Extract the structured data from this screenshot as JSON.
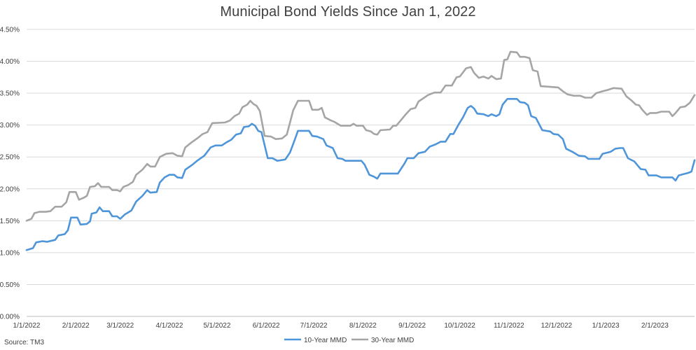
{
  "chart_data": {
    "type": "line",
    "title": "Municipal Bond Yields Since Jan 1, 2022",
    "xlabel": "",
    "ylabel": "",
    "source": "Source: TM3",
    "ylim": [
      0,
      4.5
    ],
    "y_ticks": [
      "0.00%",
      "0.50%",
      "1.00%",
      "1.50%",
      "2.00%",
      "2.50%",
      "3.00%",
      "3.50%",
      "4.00%",
      "4.50%"
    ],
    "x_ticks": [
      "1/1/2022",
      "2/1/2022",
      "3/1/2022",
      "4/1/2022",
      "5/1/2022",
      "6/1/2022",
      "7/1/2022",
      "8/1/2022",
      "9/1/2022",
      "10/1/2022",
      "11/1/2022",
      "12/1/2022",
      "1/1/2023",
      "2/1/2023"
    ],
    "xlim": [
      "2022-01-01",
      "2023-02-26"
    ],
    "grid": true,
    "legend_position": "bottom-center",
    "series": [
      {
        "name": "10-Year MMD",
        "color": "#4E95D9",
        "points": [
          [
            "2022-01-01",
            1.04
          ],
          [
            "2022-01-05",
            1.07
          ],
          [
            "2022-01-07",
            1.16
          ],
          [
            "2022-01-11",
            1.18
          ],
          [
            "2022-01-14",
            1.17
          ],
          [
            "2022-01-19",
            1.2
          ],
          [
            "2022-01-21",
            1.27
          ],
          [
            "2022-01-25",
            1.29
          ],
          [
            "2022-01-27",
            1.35
          ],
          [
            "2022-01-28",
            1.45
          ],
          [
            "2022-01-29",
            1.55
          ],
          [
            "2022-02-02",
            1.55
          ],
          [
            "2022-02-04",
            1.44
          ],
          [
            "2022-02-08",
            1.45
          ],
          [
            "2022-02-10",
            1.49
          ],
          [
            "2022-02-11",
            1.61
          ],
          [
            "2022-02-14",
            1.63
          ],
          [
            "2022-02-16",
            1.71
          ],
          [
            "2022-02-18",
            1.65
          ],
          [
            "2022-02-22",
            1.65
          ],
          [
            "2022-02-24",
            1.57
          ],
          [
            "2022-02-27",
            1.57
          ],
          [
            "2022-03-01",
            1.53
          ],
          [
            "2022-03-04",
            1.6
          ],
          [
            "2022-03-08",
            1.66
          ],
          [
            "2022-03-11",
            1.8
          ],
          [
            "2022-03-15",
            1.89
          ],
          [
            "2022-03-18",
            1.98
          ],
          [
            "2022-03-20",
            1.94
          ],
          [
            "2022-03-24",
            1.95
          ],
          [
            "2022-03-26",
            2.1
          ],
          [
            "2022-03-29",
            2.18
          ],
          [
            "2022-04-01",
            2.22
          ],
          [
            "2022-04-04",
            2.22
          ],
          [
            "2022-04-06",
            2.18
          ],
          [
            "2022-04-09",
            2.17
          ],
          [
            "2022-04-11",
            2.3
          ],
          [
            "2022-04-15",
            2.37
          ],
          [
            "2022-04-19",
            2.45
          ],
          [
            "2022-04-23",
            2.52
          ],
          [
            "2022-04-27",
            2.65
          ],
          [
            "2022-04-30",
            2.68
          ],
          [
            "2022-05-04",
            2.68
          ],
          [
            "2022-05-07",
            2.73
          ],
          [
            "2022-05-10",
            2.77
          ],
          [
            "2022-05-13",
            2.85
          ],
          [
            "2022-05-16",
            2.87
          ],
          [
            "2022-05-18",
            2.97
          ],
          [
            "2022-05-21",
            2.98
          ],
          [
            "2022-05-23",
            3.02
          ],
          [
            "2022-05-25",
            2.99
          ],
          [
            "2022-05-27",
            2.91
          ],
          [
            "2022-05-29",
            2.89
          ],
          [
            "2022-06-02",
            2.48
          ],
          [
            "2022-06-05",
            2.48
          ],
          [
            "2022-06-08",
            2.44
          ],
          [
            "2022-06-13",
            2.46
          ],
          [
            "2022-06-16",
            2.57
          ],
          [
            "2022-06-19",
            2.77
          ],
          [
            "2022-06-21",
            2.91
          ],
          [
            "2022-06-28",
            2.91
          ],
          [
            "2022-06-30",
            2.83
          ],
          [
            "2022-07-03",
            2.82
          ],
          [
            "2022-07-07",
            2.78
          ],
          [
            "2022-07-09",
            2.68
          ],
          [
            "2022-07-13",
            2.64
          ],
          [
            "2022-07-16",
            2.48
          ],
          [
            "2022-07-19",
            2.47
          ],
          [
            "2022-07-21",
            2.44
          ],
          [
            "2022-07-31",
            2.44
          ],
          [
            "2022-08-02",
            2.38
          ],
          [
            "2022-08-05",
            2.22
          ],
          [
            "2022-08-08",
            2.19
          ],
          [
            "2022-08-10",
            2.16
          ],
          [
            "2022-08-12",
            2.24
          ],
          [
            "2022-08-23",
            2.24
          ],
          [
            "2022-08-27",
            2.39
          ],
          [
            "2022-08-29",
            2.48
          ],
          [
            "2022-09-02",
            2.48
          ],
          [
            "2022-09-05",
            2.56
          ],
          [
            "2022-09-09",
            2.58
          ],
          [
            "2022-09-12",
            2.66
          ],
          [
            "2022-09-16",
            2.7
          ],
          [
            "2022-09-19",
            2.74
          ],
          [
            "2022-09-22",
            2.74
          ],
          [
            "2022-09-25",
            2.86
          ],
          [
            "2022-09-27",
            2.86
          ],
          [
            "2022-09-30",
            3.0
          ],
          [
            "2022-10-03",
            3.12
          ],
          [
            "2022-10-06",
            3.27
          ],
          [
            "2022-10-08",
            3.3
          ],
          [
            "2022-10-10",
            3.26
          ],
          [
            "2022-10-12",
            3.18
          ],
          [
            "2022-10-16",
            3.17
          ],
          [
            "2022-10-19",
            3.14
          ],
          [
            "2022-10-21",
            3.17
          ],
          [
            "2022-10-24",
            3.14
          ],
          [
            "2022-10-26",
            3.17
          ],
          [
            "2022-10-28",
            3.32
          ],
          [
            "2022-10-31",
            3.41
          ],
          [
            "2022-11-06",
            3.41
          ],
          [
            "2022-11-08",
            3.36
          ],
          [
            "2022-11-11",
            3.35
          ],
          [
            "2022-11-13",
            3.31
          ],
          [
            "2022-11-15",
            3.14
          ],
          [
            "2022-11-18",
            3.11
          ],
          [
            "2022-11-22",
            2.92
          ],
          [
            "2022-11-27",
            2.9
          ],
          [
            "2022-11-29",
            2.86
          ],
          [
            "2022-12-02",
            2.85
          ],
          [
            "2022-12-05",
            2.78
          ],
          [
            "2022-12-07",
            2.63
          ],
          [
            "2022-12-11",
            2.58
          ],
          [
            "2022-12-15",
            2.52
          ],
          [
            "2022-12-19",
            2.51
          ],
          [
            "2022-12-21",
            2.47
          ],
          [
            "2022-12-28",
            2.47
          ],
          [
            "2022-12-30",
            2.55
          ],
          [
            "2023-01-04",
            2.58
          ],
          [
            "2023-01-07",
            2.63
          ],
          [
            "2023-01-10",
            2.64
          ],
          [
            "2023-01-12",
            2.64
          ],
          [
            "2023-01-15",
            2.48
          ],
          [
            "2023-01-19",
            2.43
          ],
          [
            "2023-01-21",
            2.37
          ],
          [
            "2023-01-23",
            2.31
          ],
          [
            "2023-01-26",
            2.3
          ],
          [
            "2023-01-28",
            2.21
          ],
          [
            "2023-02-02",
            2.21
          ],
          [
            "2023-02-05",
            2.18
          ],
          [
            "2023-02-09",
            2.18
          ],
          [
            "2023-02-12",
            2.18
          ],
          [
            "2023-02-14",
            2.13
          ],
          [
            "2023-02-16",
            2.21
          ],
          [
            "2023-02-19",
            2.23
          ],
          [
            "2023-02-22",
            2.25
          ],
          [
            "2023-02-24",
            2.27
          ],
          [
            "2023-02-26",
            2.45
          ]
        ]
      },
      {
        "name": "30-Year MMD",
        "color": "#A5A5A5",
        "points": [
          [
            "2022-01-01",
            1.5
          ],
          [
            "2022-01-04",
            1.53
          ],
          [
            "2022-01-06",
            1.62
          ],
          [
            "2022-01-09",
            1.64
          ],
          [
            "2022-01-13",
            1.64
          ],
          [
            "2022-01-16",
            1.65
          ],
          [
            "2022-01-19",
            1.72
          ],
          [
            "2022-01-23",
            1.72
          ],
          [
            "2022-01-26",
            1.79
          ],
          [
            "2022-01-28",
            1.95
          ],
          [
            "2022-02-01",
            1.95
          ],
          [
            "2022-02-03",
            1.83
          ],
          [
            "2022-02-06",
            1.86
          ],
          [
            "2022-02-08",
            1.89
          ],
          [
            "2022-02-10",
            2.03
          ],
          [
            "2022-02-13",
            2.04
          ],
          [
            "2022-02-15",
            2.09
          ],
          [
            "2022-02-17",
            2.03
          ],
          [
            "2022-02-22",
            2.03
          ],
          [
            "2022-02-24",
            1.98
          ],
          [
            "2022-02-27",
            1.98
          ],
          [
            "2022-03-01",
            1.96
          ],
          [
            "2022-03-03",
            2.03
          ],
          [
            "2022-03-06",
            2.06
          ],
          [
            "2022-03-09",
            2.11
          ],
          [
            "2022-03-11",
            2.22
          ],
          [
            "2022-03-15",
            2.3
          ],
          [
            "2022-03-18",
            2.39
          ],
          [
            "2022-03-20",
            2.35
          ],
          [
            "2022-03-23",
            2.35
          ],
          [
            "2022-03-26",
            2.5
          ],
          [
            "2022-03-30",
            2.55
          ],
          [
            "2022-04-03",
            2.56
          ],
          [
            "2022-04-06",
            2.52
          ],
          [
            "2022-04-09",
            2.51
          ],
          [
            "2022-04-11",
            2.65
          ],
          [
            "2022-04-15",
            2.73
          ],
          [
            "2022-04-19",
            2.8
          ],
          [
            "2022-04-22",
            2.86
          ],
          [
            "2022-04-25",
            2.89
          ],
          [
            "2022-04-28",
            3.03
          ],
          [
            "2022-05-06",
            3.04
          ],
          [
            "2022-05-09",
            3.07
          ],
          [
            "2022-05-12",
            3.14
          ],
          [
            "2022-05-15",
            3.18
          ],
          [
            "2022-05-17",
            3.28
          ],
          [
            "2022-05-20",
            3.32
          ],
          [
            "2022-05-22",
            3.38
          ],
          [
            "2022-05-24",
            3.33
          ],
          [
            "2022-05-26",
            3.3
          ],
          [
            "2022-05-28",
            3.22
          ],
          [
            "2022-05-31",
            2.83
          ],
          [
            "2022-06-04",
            2.82
          ],
          [
            "2022-06-07",
            2.78
          ],
          [
            "2022-06-11",
            2.79
          ],
          [
            "2022-06-14",
            2.85
          ],
          [
            "2022-06-16",
            3.04
          ],
          [
            "2022-06-18",
            3.23
          ],
          [
            "2022-06-21",
            3.38
          ],
          [
            "2022-06-28",
            3.38
          ],
          [
            "2022-06-30",
            3.24
          ],
          [
            "2022-07-04",
            3.24
          ],
          [
            "2022-07-06",
            3.27
          ],
          [
            "2022-07-08",
            3.12
          ],
          [
            "2022-07-12",
            3.07
          ],
          [
            "2022-07-14",
            3.05
          ],
          [
            "2022-07-18",
            2.99
          ],
          [
            "2022-07-24",
            2.99
          ],
          [
            "2022-07-26",
            3.02
          ],
          [
            "2022-07-28",
            2.99
          ],
          [
            "2022-08-01",
            2.99
          ],
          [
            "2022-08-03",
            2.92
          ],
          [
            "2022-08-06",
            2.9
          ],
          [
            "2022-08-08",
            2.86
          ],
          [
            "2022-08-10",
            2.85
          ],
          [
            "2022-08-12",
            2.92
          ],
          [
            "2022-08-18",
            2.93
          ],
          [
            "2022-08-20",
            2.99
          ],
          [
            "2022-08-22",
            2.99
          ],
          [
            "2022-08-25",
            3.08
          ],
          [
            "2022-08-28",
            3.17
          ],
          [
            "2022-08-31",
            3.25
          ],
          [
            "2022-09-03",
            3.27
          ],
          [
            "2022-09-05",
            3.37
          ],
          [
            "2022-09-08",
            3.42
          ],
          [
            "2022-09-11",
            3.47
          ],
          [
            "2022-09-15",
            3.51
          ],
          [
            "2022-09-19",
            3.51
          ],
          [
            "2022-09-22",
            3.62
          ],
          [
            "2022-09-26",
            3.62
          ],
          [
            "2022-09-29",
            3.75
          ],
          [
            "2022-10-01",
            3.76
          ],
          [
            "2022-10-05",
            3.89
          ],
          [
            "2022-10-08",
            3.91
          ],
          [
            "2022-10-10",
            3.82
          ],
          [
            "2022-10-13",
            3.74
          ],
          [
            "2022-10-16",
            3.76
          ],
          [
            "2022-10-19",
            3.73
          ],
          [
            "2022-10-21",
            3.77
          ],
          [
            "2022-10-24",
            3.72
          ],
          [
            "2022-10-27",
            3.73
          ],
          [
            "2022-10-29",
            4.02
          ],
          [
            "2022-10-31",
            4.03
          ],
          [
            "2022-11-02",
            4.15
          ],
          [
            "2022-11-06",
            4.14
          ],
          [
            "2022-11-08",
            4.07
          ],
          [
            "2022-11-11",
            4.07
          ],
          [
            "2022-11-14",
            4.05
          ],
          [
            "2022-11-16",
            3.86
          ],
          [
            "2022-11-19",
            3.84
          ],
          [
            "2022-11-21",
            3.61
          ],
          [
            "2022-12-02",
            3.59
          ],
          [
            "2022-12-05",
            3.53
          ],
          [
            "2022-12-08",
            3.48
          ],
          [
            "2022-12-12",
            3.46
          ],
          [
            "2022-12-16",
            3.46
          ],
          [
            "2022-12-19",
            3.43
          ],
          [
            "2022-12-23",
            3.43
          ],
          [
            "2022-12-26",
            3.5
          ],
          [
            "2022-12-30",
            3.53
          ],
          [
            "2023-01-02",
            3.55
          ],
          [
            "2023-01-06",
            3.58
          ],
          [
            "2023-01-11",
            3.57
          ],
          [
            "2023-01-14",
            3.45
          ],
          [
            "2023-01-17",
            3.39
          ],
          [
            "2023-01-20",
            3.32
          ],
          [
            "2023-01-22",
            3.31
          ],
          [
            "2023-01-24",
            3.24
          ],
          [
            "2023-01-27",
            3.16
          ],
          [
            "2023-01-29",
            3.19
          ],
          [
            "2023-02-02",
            3.19
          ],
          [
            "2023-02-05",
            3.21
          ],
          [
            "2023-02-10",
            3.21
          ],
          [
            "2023-02-12",
            3.14
          ],
          [
            "2023-02-14",
            3.19
          ],
          [
            "2023-02-17",
            3.28
          ],
          [
            "2023-02-20",
            3.29
          ],
          [
            "2023-02-23",
            3.35
          ],
          [
            "2023-02-26",
            3.47
          ]
        ]
      }
    ]
  }
}
